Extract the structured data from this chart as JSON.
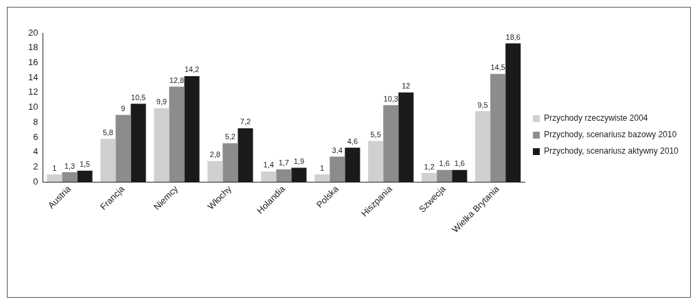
{
  "chart_data": {
    "type": "bar",
    "categories": [
      "Austria",
      "Francja",
      "Niemcy",
      "Włochy",
      "Holandia",
      "Polska",
      "Hiszpania",
      "Szwecja",
      "Wielka Brytania"
    ],
    "series": [
      {
        "name": "Przychody rzeczywiste 2004",
        "color": "#d0d0d0",
        "values": [
          1,
          5.8,
          9.9,
          2.8,
          1.4,
          1,
          5.5,
          1.2,
          9.5
        ],
        "value_labels": [
          "1",
          "5,8",
          "9,9",
          "2,8",
          "1,4",
          "1",
          "5,5",
          "1,2",
          "9,5"
        ]
      },
      {
        "name": "Przychody, scenariusz bazowy 2010",
        "color": "#8c8c8c",
        "values": [
          1.3,
          9,
          12.8,
          5.2,
          1.7,
          3.4,
          10.3,
          1.6,
          14.5
        ],
        "value_labels": [
          "1,3",
          "9",
          "12,8",
          "5,2",
          "1,7",
          "3,4",
          "10,3",
          "1,6",
          "14,5"
        ]
      },
      {
        "name": "Przychody, scenariusz aktywny 2010",
        "color": "#1a1a1a",
        "values": [
          1.5,
          10.5,
          14.2,
          7.2,
          1.9,
          4.6,
          12,
          1.6,
          18.6
        ],
        "value_labels": [
          "1,5",
          "10,5",
          "14,2",
          "7,2",
          "1,9",
          "4,6",
          "12",
          "1,6",
          "18,6"
        ]
      }
    ],
    "ylim": [
      0,
      20
    ],
    "yticks": [
      0,
      2,
      4,
      6,
      8,
      10,
      12,
      14,
      16,
      18,
      20
    ],
    "grid": false,
    "legend": "right"
  }
}
